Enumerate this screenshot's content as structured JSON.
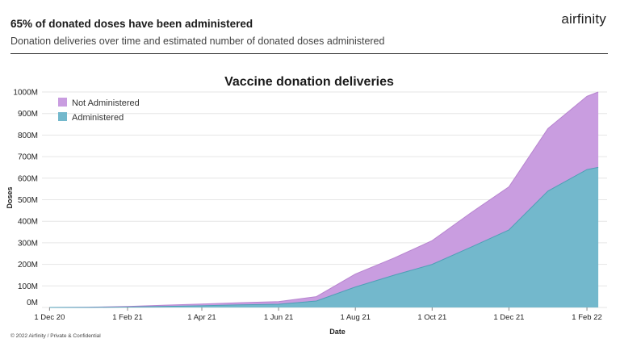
{
  "header": {
    "title": "65% of donated doses have been administered",
    "subtitle": "Donation deliveries over time and estimated number of donated doses administered",
    "logo_text": "airfinity"
  },
  "footer": {
    "text": "© 2022 Airfinity / Private & Confidential"
  },
  "colors": {
    "not_administered": "#c99de0",
    "administered": "#73b8cc",
    "grid": "#e6e6e6"
  },
  "chart_data": {
    "type": "area",
    "stacked": true,
    "title": "Vaccine donation deliveries",
    "xlabel": "Date",
    "ylabel": "Doses",
    "x_ticks": [
      "1 Dec 20",
      "1 Feb 21",
      "1 Apr 21",
      "1 Jun 21",
      "1 Aug 21",
      "1 Oct 21",
      "1 Dec 21",
      "1 Feb 22"
    ],
    "y_ticks": [
      "0M",
      "100M",
      "200M",
      "300M",
      "400M",
      "500M",
      "600M",
      "700M",
      "800M",
      "900M",
      "1000M"
    ],
    "ylim": [
      0,
      1000
    ],
    "y_unit": "M",
    "legend_position": "top-left",
    "grid": true,
    "x": [
      "2020-12-01",
      "2021-01-01",
      "2021-02-01",
      "2021-03-01",
      "2021-04-01",
      "2021-05-01",
      "2021-06-01",
      "2021-07-01",
      "2021-08-01",
      "2021-09-01",
      "2021-10-01",
      "2021-11-01",
      "2021-12-01",
      "2022-01-01",
      "2022-02-01",
      "2022-02-10"
    ],
    "series": [
      {
        "name": "Administered",
        "values": [
          0,
          0,
          2,
          5,
          8,
          12,
          15,
          30,
          95,
          150,
          200,
          280,
          360,
          540,
          640,
          650
        ]
      },
      {
        "name": "Not Administered",
        "values": [
          0,
          1,
          3,
          5,
          8,
          10,
          12,
          20,
          60,
          80,
          110,
          160,
          200,
          290,
          340,
          350
        ]
      }
    ]
  }
}
